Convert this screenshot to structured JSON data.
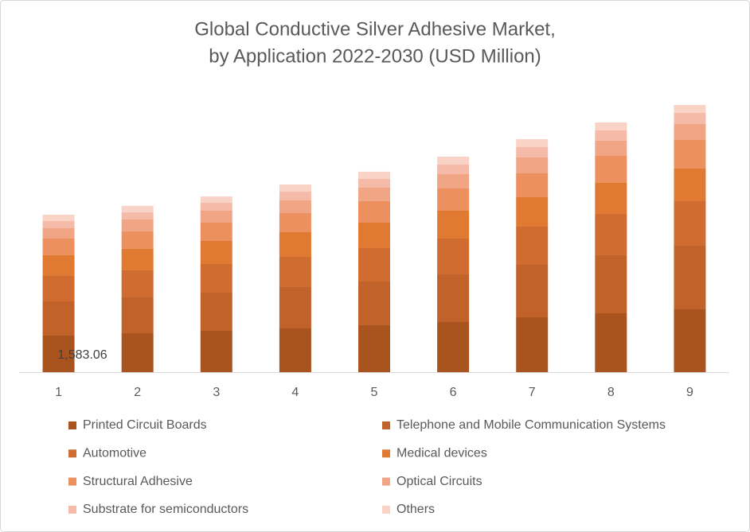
{
  "chart_data": {
    "type": "stacked_bar",
    "title": [
      "Global Conductive Silver Adhesive Market,",
      "by Application 2022-2030 (USD Million)"
    ],
    "categories": [
      "1",
      "2",
      "3",
      "4",
      "5",
      "6",
      "7",
      "8",
      "9"
    ],
    "series": [
      {
        "name": "Printed Circuit Boards",
        "color": "#a9531f",
        "values": [
          1583.06,
          1686,
          1789,
          1892,
          2030,
          2167,
          2374,
          2546,
          2718
        ],
        "value_labels": [
          "1,583.06",
          null,
          null,
          null,
          null,
          null,
          null,
          null,
          null
        ]
      },
      {
        "name": "Telephone and Mobile Communication Systems",
        "color": "#c0622a",
        "values": [
          1479,
          1548,
          1651,
          1789,
          1892,
          2064,
          2270,
          2511,
          2752
        ]
      },
      {
        "name": "Automotive",
        "color": "#d06c2f",
        "values": [
          1101,
          1170,
          1238,
          1307,
          1445,
          1548,
          1651,
          1789,
          1926
        ]
      },
      {
        "name": "Medical devices",
        "color": "#e07a33",
        "values": [
          894,
          929,
          998,
          1066,
          1101,
          1204,
          1273,
          1342,
          1410
        ]
      },
      {
        "name": "Structural Adhesive",
        "color": "#ec9060",
        "values": [
          722,
          757,
          791,
          826,
          929,
          963,
          1032,
          1170,
          1238
        ]
      },
      {
        "name": "Optical Circuits",
        "color": "#f0a585",
        "values": [
          447,
          516,
          516,
          550,
          585,
          619,
          688,
          654,
          688
        ]
      },
      {
        "name": "Substrate for semiconductors",
        "color": "#f5bba8",
        "values": [
          310,
          310,
          344,
          378,
          378,
          413,
          447,
          447,
          482
        ]
      },
      {
        "name": "Others",
        "color": "#f8d3c6",
        "values": [
          275,
          275,
          275,
          310,
          310,
          344,
          344,
          344,
          344
        ]
      }
    ]
  }
}
